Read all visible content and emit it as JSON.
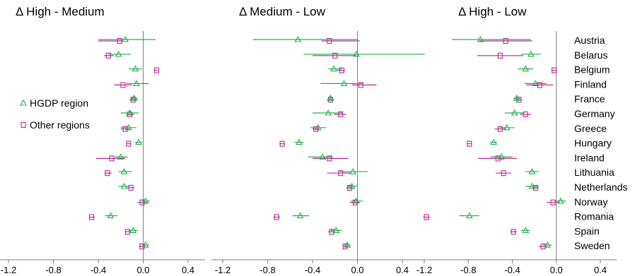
{
  "colors": {
    "hgdp": "#22b14c",
    "other": "#c0269b",
    "axis": "#7f7f7f"
  },
  "legend": {
    "hgdp_label": "HGDP region",
    "other_label": "Other regions"
  },
  "countries": [
    "Austria",
    "Belarus",
    "Belgium",
    "Finland",
    "France",
    "Germany",
    "Greece",
    "Hungary",
    "Ireland",
    "Lithuania",
    "Netherlands",
    "Norway",
    "Romania",
    "Spain",
    "Sweden"
  ],
  "chart_data": [
    {
      "type": "scatter",
      "title": "Δ High - Medium",
      "xlim": [
        -1.3,
        0.55
      ],
      "xticks": [
        "-1.2",
        "-0.8",
        "-0.4",
        "0.0",
        "0.4"
      ],
      "series": [
        {
          "name": "HGDP region",
          "marker": "triangle",
          "values": [
            -0.16,
            -0.22,
            -0.07,
            -0.06,
            -0.08,
            -0.12,
            -0.13,
            -0.04,
            -0.2,
            -0.17,
            -0.17,
            0.02,
            -0.29,
            -0.09,
            0.02
          ],
          "ci_low": [
            -0.4,
            -0.31,
            -0.13,
            -0.15,
            -0.11,
            -0.2,
            -0.2,
            -0.07,
            -0.25,
            -0.22,
            -0.22,
            -0.01,
            -0.34,
            -0.13,
            -0.01
          ],
          "ci_high": [
            0.11,
            -0.11,
            -0.01,
            0.05,
            -0.05,
            -0.04,
            -0.06,
            -0.01,
            -0.14,
            -0.1,
            -0.12,
            0.06,
            -0.23,
            -0.05,
            0.05
          ]
        },
        {
          "name": "Other regions",
          "marker": "square",
          "values": [
            -0.21,
            -0.31,
            0.12,
            -0.18,
            -0.09,
            -0.12,
            -0.16,
            -0.13,
            -0.28,
            -0.32,
            -0.11,
            -0.01,
            -0.46,
            -0.14,
            -0.01
          ],
          "ci_low": [
            -0.4,
            -0.35,
            0.1,
            -0.26,
            -0.12,
            -0.15,
            -0.2,
            -0.15,
            -0.42,
            -0.34,
            -0.14,
            -0.05,
            -0.48,
            -0.16,
            -0.04
          ],
          "ci_high": [
            -0.18,
            -0.26,
            0.13,
            -0.1,
            -0.06,
            -0.08,
            -0.12,
            -0.11,
            -0.16,
            -0.28,
            -0.08,
            0.03,
            -0.43,
            -0.11,
            0.02
          ]
        }
      ]
    },
    {
      "type": "scatter",
      "title": "Δ Medium - Low",
      "xlim": [
        -1.3,
        0.55
      ],
      "xticks": [
        "-1.2",
        "-0.8",
        "-0.4",
        "0.0",
        "0.4"
      ],
      "series": [
        {
          "name": "HGDP region",
          "marker": "triangle",
          "values": [
            -0.53,
            -0.01,
            -0.21,
            -0.12,
            -0.24,
            -0.26,
            -0.35,
            -0.52,
            -0.31,
            -0.04,
            -0.05,
            -0.01,
            -0.51,
            -0.19,
            -0.09
          ],
          "ci_low": [
            -0.93,
            -0.48,
            -0.26,
            -0.33,
            -0.26,
            -0.4,
            -0.42,
            -0.56,
            -0.44,
            -0.16,
            -0.09,
            -0.06,
            -0.58,
            -0.24,
            -0.12
          ],
          "ci_high": [
            0.0,
            0.6,
            -0.14,
            0.05,
            -0.22,
            -0.13,
            -0.28,
            -0.48,
            -0.22,
            0.09,
            0.0,
            0.05,
            -0.43,
            -0.14,
            -0.06
          ]
        },
        {
          "name": "Other regions",
          "marker": "square",
          "values": [
            -0.25,
            -0.2,
            -0.14,
            0.03,
            -0.24,
            -0.15,
            -0.37,
            -0.67,
            -0.25,
            -0.15,
            -0.07,
            -0.02,
            -0.72,
            -0.23,
            -0.11
          ],
          "ci_low": [
            -0.32,
            -0.4,
            -0.18,
            -0.05,
            -0.27,
            -0.21,
            -0.4,
            -0.69,
            -0.4,
            -0.27,
            -0.1,
            -0.07,
            -0.75,
            -0.26,
            -0.13
          ],
          "ci_high": [
            0.02,
            -0.01,
            -0.11,
            0.17,
            -0.21,
            -0.1,
            -0.34,
            -0.65,
            -0.08,
            -0.06,
            -0.04,
            0.02,
            -0.69,
            -0.2,
            -0.08
          ]
        }
      ]
    },
    {
      "type": "scatter",
      "title": "Δ High - Low",
      "xlim": [
        -1.3,
        0.55
      ],
      "xticks": [
        "-1.2",
        "-0.8",
        "-0.4",
        "0.0",
        "0.4"
      ],
      "series": [
        {
          "name": "HGDP region",
          "marker": "triangle",
          "values": [
            -0.69,
            -0.23,
            -0.28,
            -0.19,
            -0.36,
            -0.38,
            -0.45,
            -0.57,
            -0.5,
            -0.22,
            -0.22,
            0.04,
            -0.79,
            -0.28,
            -0.08
          ],
          "ci_low": [
            -0.95,
            -0.32,
            -0.35,
            -0.29,
            -0.39,
            -0.47,
            -0.52,
            -0.6,
            -0.6,
            -0.28,
            -0.28,
            -0.01,
            -0.88,
            -0.32,
            -0.12
          ],
          "ci_high": [
            -0.23,
            -0.14,
            -0.21,
            -0.09,
            -0.33,
            -0.29,
            -0.38,
            -0.54,
            -0.4,
            -0.16,
            -0.16,
            0.09,
            -0.7,
            -0.24,
            -0.04
          ]
        },
        {
          "name": "Other regions",
          "marker": "square",
          "values": [
            -0.46,
            -0.51,
            -0.02,
            -0.15,
            -0.34,
            -0.28,
            -0.51,
            -0.79,
            -0.53,
            -0.48,
            -0.19,
            -0.03,
            -1.18,
            -0.39,
            -0.12
          ],
          "ci_low": [
            -0.7,
            -0.72,
            -0.04,
            -0.27,
            -0.37,
            -0.33,
            -0.56,
            -0.81,
            -0.71,
            -0.55,
            -0.22,
            -0.09,
            -1.21,
            -0.42,
            -0.16
          ],
          "ci_high": [
            -0.22,
            -0.3,
            0.0,
            -0.03,
            -0.31,
            -0.23,
            -0.46,
            -0.77,
            -0.36,
            -0.41,
            -0.16,
            0.03,
            -1.15,
            -0.36,
            -0.08
          ]
        }
      ]
    }
  ]
}
